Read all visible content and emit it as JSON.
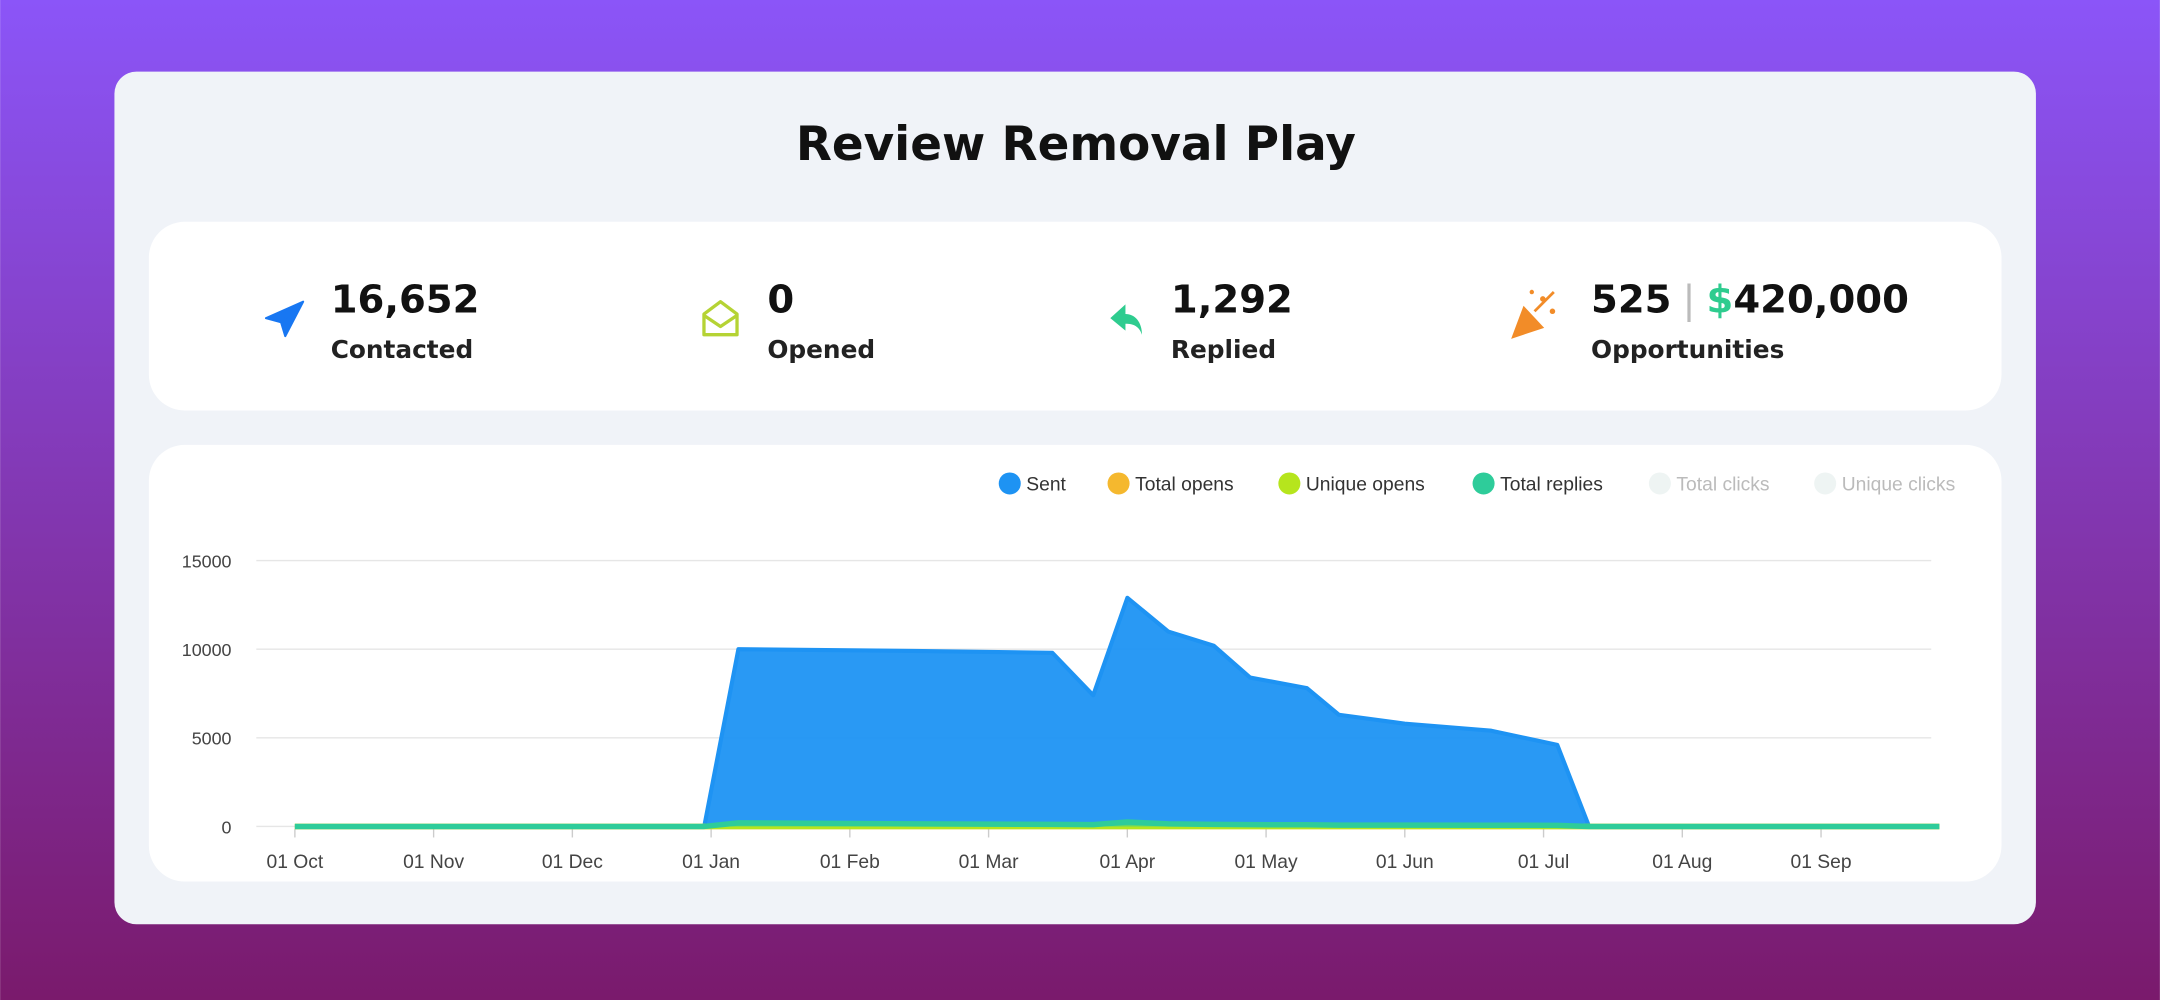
{
  "title": "Review Removal Play",
  "stats": [
    {
      "value": "16,652",
      "label": "Contacted"
    },
    {
      "value": "0",
      "label": "Opened"
    },
    {
      "value": "1,292",
      "label": "Replied"
    },
    {
      "value": "525",
      "separator": "|",
      "currency": "$",
      "amount": "420,000",
      "label": "Opportunities"
    }
  ],
  "chart_data": {
    "type": "area",
    "x": [
      "01 Oct",
      "30 Dec",
      "07 Jan",
      "15 Feb",
      "15 Mar",
      "24 Mar",
      "01 Apr",
      "10 Apr",
      "20 Apr",
      "28 Apr",
      "10 May",
      "17 May",
      "01 Jun",
      "20 Jun",
      "04 Jul",
      "11 Jul",
      "27 Sep"
    ],
    "series": [
      {
        "name": "Sent",
        "color": "#1e93f3",
        "values": [
          0,
          0,
          10000,
          9900,
          9800,
          7400,
          12900,
          11000,
          10200,
          8400,
          7800,
          6300,
          5800,
          5400,
          4600,
          0,
          0
        ]
      },
      {
        "name": "Total opens",
        "color": "#f5b82e",
        "values": [
          0,
          0,
          0,
          0,
          0,
          0,
          0,
          0,
          0,
          0,
          0,
          0,
          0,
          0,
          0,
          0,
          0
        ]
      },
      {
        "name": "Unique opens",
        "color": "#b6e51d",
        "values": [
          0,
          0,
          0,
          0,
          0,
          0,
          0,
          0,
          0,
          0,
          0,
          0,
          0,
          0,
          0,
          0,
          0
        ]
      },
      {
        "name": "Total replies",
        "color": "#2ecc9a",
        "values": [
          0,
          0,
          200,
          150,
          120,
          100,
          250,
          150,
          120,
          100,
          90,
          80,
          80,
          70,
          60,
          0,
          0
        ]
      },
      {
        "name": "Total clicks",
        "color": "#eef4f3",
        "hidden": true
      },
      {
        "name": "Unique clicks",
        "color": "#eef4f3",
        "hidden": true
      }
    ],
    "xticks": [
      "01 Oct",
      "01 Nov",
      "01 Dec",
      "01 Jan",
      "01 Feb",
      "01 Mar",
      "01 Apr",
      "01 May",
      "01 Jun",
      "01 Jul",
      "01 Aug",
      "01 Sep"
    ],
    "ylim": [
      0,
      15000
    ],
    "yticks": [
      0,
      5000,
      10000,
      15000
    ],
    "grid": true
  }
}
